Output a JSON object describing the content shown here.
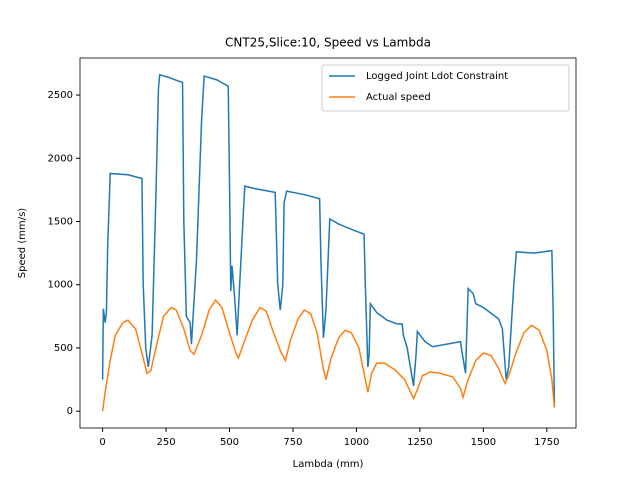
{
  "chart_data": {
    "type": "line",
    "title": "CNT25,Slice:10, Speed vs Lambda",
    "x_label": "Lambda (mm)",
    "y_label": "Speed (mm/s)",
    "xlim": [
      -89,
      1865
    ],
    "ylim": [
      -133,
      2793
    ],
    "xticks": [
      0,
      250,
      500,
      750,
      1000,
      1250,
      1500,
      1750
    ],
    "yticks": [
      0,
      500,
      1000,
      1500,
      2000,
      2500
    ],
    "legend": "upper right",
    "series": [
      {
        "name": "Logged Joint Ldot Constraint",
        "color": "#1f77b4",
        "x": [
          0,
          3,
          10,
          15,
          20,
          30,
          100,
          155,
          160,
          170,
          180,
          195,
          210,
          220,
          225,
          260,
          300,
          315,
          320,
          330,
          345,
          350,
          370,
          390,
          400,
          450,
          495,
          500,
          505,
          510,
          520,
          530,
          540,
          560,
          600,
          680,
          690,
          700,
          710,
          715,
          725,
          800,
          855,
          860,
          870,
          880,
          895,
          930,
          990,
          1030,
          1035,
          1045,
          1050,
          1055,
          1080,
          1120,
          1160,
          1180,
          1185,
          1200,
          1225,
          1235,
          1240,
          1270,
          1300,
          1410,
          1415,
          1430,
          1440,
          1460,
          1470,
          1500,
          1560,
          1575,
          1590,
          1600,
          1620,
          1630,
          1700,
          1770,
          1775,
          1780
        ],
        "values": [
          250,
          810,
          700,
          780,
          1300,
          1880,
          1870,
          1840,
          1000,
          500,
          350,
          600,
          1700,
          2550,
          2660,
          2640,
          2610,
          2600,
          1500,
          750,
          700,
          530,
          1200,
          2300,
          2650,
          2620,
          2570,
          1800,
          950,
          1150,
          900,
          600,
          1000,
          1780,
          1760,
          1730,
          1000,
          800,
          1000,
          1650,
          1740,
          1710,
          1680,
          1200,
          580,
          800,
          1520,
          1480,
          1430,
          1400,
          1000,
          350,
          450,
          850,
          780,
          720,
          690,
          690,
          600,
          500,
          200,
          450,
          630,
          550,
          510,
          550,
          480,
          300,
          970,
          930,
          850,
          820,
          730,
          650,
          250,
          350,
          1000,
          1260,
          1250,
          1270,
          800,
          30
        ]
      },
      {
        "name": "Actual speed",
        "color": "#ff7f0e",
        "x": [
          0,
          10,
          30,
          50,
          80,
          100,
          130,
          160,
          175,
          190,
          210,
          240,
          270,
          290,
          320,
          345,
          360,
          390,
          420,
          445,
          470,
          500,
          525,
          535,
          560,
          590,
          620,
          645,
          670,
          700,
          720,
          740,
          770,
          795,
          820,
          845,
          870,
          880,
          900,
          930,
          955,
          980,
          1010,
          1035,
          1045,
          1060,
          1080,
          1110,
          1150,
          1190,
          1225,
          1240,
          1260,
          1290,
          1330,
          1380,
          1410,
          1420,
          1440,
          1470,
          1500,
          1530,
          1560,
          1585,
          1600,
          1630,
          1660,
          1690,
          1720,
          1750,
          1770,
          1780
        ],
        "values": [
          0,
          150,
          400,
          600,
          700,
          720,
          650,
          420,
          300,
          320,
          500,
          750,
          820,
          800,
          650,
          480,
          450,
          600,
          800,
          880,
          820,
          620,
          460,
          420,
          560,
          720,
          820,
          790,
          640,
          480,
          400,
          560,
          730,
          800,
          770,
          620,
          330,
          250,
          420,
          580,
          640,
          620,
          500,
          250,
          150,
          300,
          380,
          380,
          330,
          250,
          100,
          170,
          280,
          310,
          300,
          270,
          180,
          110,
          250,
          400,
          460,
          440,
          340,
          220,
          280,
          470,
          620,
          680,
          640,
          480,
          250,
          30
        ]
      }
    ]
  }
}
